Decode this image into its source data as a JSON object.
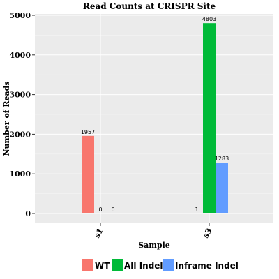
{
  "chart_data": {
    "type": "bar",
    "title": "Read Counts at CRISPR Site",
    "xlabel": "Sample",
    "ylabel": "Number of Reads",
    "categories": [
      "s1",
      "s3"
    ],
    "series": [
      {
        "name": "WT",
        "color": "#F8766D",
        "values": [
          1957,
          1
        ]
      },
      {
        "name": "All Indel",
        "color": "#00BA38",
        "values": [
          0,
          4803
        ]
      },
      {
        "name": "Inframe Indel",
        "color": "#619CFF",
        "values": [
          0,
          1283
        ]
      }
    ],
    "ylim": [
      0,
      5000
    ],
    "yticks": [
      0,
      1000,
      2000,
      3000,
      4000,
      5000
    ],
    "ytick_labels": [
      "0",
      "1000",
      "2000",
      "3000",
      "4000",
      "5000"
    ],
    "data_labels": [
      [
        "1957",
        "0",
        "0"
      ],
      [
        "1",
        "4803",
        "1283"
      ]
    ],
    "grid": true,
    "legend_position": "bottom",
    "panel_background": "#EBEBEB"
  }
}
